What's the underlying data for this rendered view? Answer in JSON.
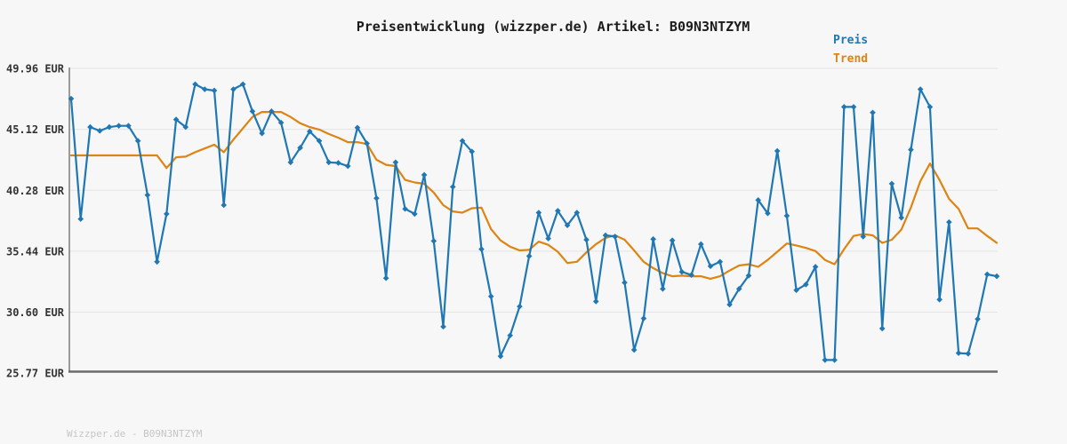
{
  "title": "Preisentwicklung (wizzper.de) Artikel: B09N3NTZYM",
  "legend": {
    "price_label": "Preis",
    "trend_label": "Trend"
  },
  "footer": "Wizzper.de - B09N3NTZYM",
  "colors": {
    "price": "#1f77b4",
    "trend": "#dd8412",
    "grid": "#e4e4e4",
    "axis_left": "#9a9a9a",
    "axis_bottom": "#6b6b6b",
    "tick_text": "#333333"
  },
  "chart_data": {
    "type": "line",
    "title": "Preisentwicklung (wizzper.de) Artikel: B09N3NTZYM",
    "xlabel": "",
    "ylabel": "EUR",
    "x": "index (0-97), no x-axis tick labels shown",
    "ylim": [
      25.77,
      49.96
    ],
    "grid": true,
    "legend_position": "top-right",
    "y_ticks": [
      {
        "value": 49.96,
        "label": "49.96 EUR"
      },
      {
        "value": 45.12,
        "label": "45.12 EUR"
      },
      {
        "value": 40.28,
        "label": "40.28 EUR"
      },
      {
        "value": 35.44,
        "label": "35.44 EUR"
      },
      {
        "value": 30.6,
        "label": "30.60 EUR"
      },
      {
        "value": 25.77,
        "label": "25.77 EUR"
      }
    ],
    "series": [
      {
        "name": "Preis",
        "color": "#1f77b4",
        "marker": "diamond",
        "values": [
          47.55,
          38.0,
          45.3,
          45.0,
          45.3,
          45.4,
          45.4,
          44.2,
          39.9,
          34.6,
          38.4,
          45.9,
          45.3,
          48.7,
          48.3,
          48.2,
          39.1,
          48.3,
          48.7,
          46.55,
          44.8,
          46.55,
          45.65,
          42.5,
          43.65,
          44.95,
          44.2,
          42.5,
          42.45,
          42.2,
          45.25,
          44.0,
          39.65,
          33.3,
          42.5,
          38.8,
          38.4,
          41.5,
          36.25,
          29.45,
          40.55,
          44.2,
          43.35,
          35.6,
          31.85,
          27.1,
          28.75,
          31.05,
          35.05,
          38.5,
          36.45,
          38.65,
          37.5,
          38.5,
          36.35,
          31.45,
          36.7,
          36.6,
          32.95,
          27.6,
          30.1,
          36.4,
          32.45,
          36.3,
          33.8,
          33.55,
          36.0,
          34.25,
          34.6,
          31.2,
          32.45,
          33.5,
          39.5,
          38.45,
          43.4,
          38.25,
          32.35,
          32.8,
          34.2,
          26.8,
          26.8,
          46.9,
          46.9,
          36.6,
          46.45,
          29.3,
          40.8,
          38.1,
          43.5,
          48.3,
          46.9,
          31.6,
          37.75,
          27.35,
          27.3,
          30.05,
          33.6,
          33.45
        ]
      },
      {
        "name": "Trend",
        "color": "#dd8412",
        "marker": "none",
        "values": [
          43.05,
          43.05,
          43.05,
          43.05,
          43.05,
          43.05,
          43.05,
          43.05,
          43.05,
          43.05,
          42.05,
          42.9,
          42.95,
          43.3,
          43.6,
          43.9,
          43.3,
          44.3,
          45.2,
          46.1,
          46.5,
          46.5,
          46.5,
          46.1,
          45.6,
          45.3,
          45.1,
          44.75,
          44.45,
          44.1,
          44.1,
          43.95,
          42.7,
          42.3,
          42.2,
          41.1,
          40.9,
          40.8,
          40.1,
          39.1,
          38.6,
          38.5,
          38.85,
          38.9,
          37.2,
          36.3,
          35.8,
          35.5,
          35.55,
          36.2,
          35.95,
          35.4,
          34.5,
          34.6,
          35.35,
          36.0,
          36.5,
          36.7,
          36.35,
          35.5,
          34.6,
          34.1,
          33.7,
          33.45,
          33.5,
          33.45,
          33.45,
          33.25,
          33.45,
          33.9,
          34.3,
          34.4,
          34.2,
          34.75,
          35.4,
          36.05,
          35.9,
          35.7,
          35.45,
          34.75,
          34.4,
          35.6,
          36.65,
          36.8,
          36.7,
          36.1,
          36.35,
          37.15,
          38.9,
          41.0,
          42.4,
          41.1,
          39.6,
          38.8,
          37.25,
          37.25,
          36.65,
          36.1
        ]
      }
    ]
  }
}
